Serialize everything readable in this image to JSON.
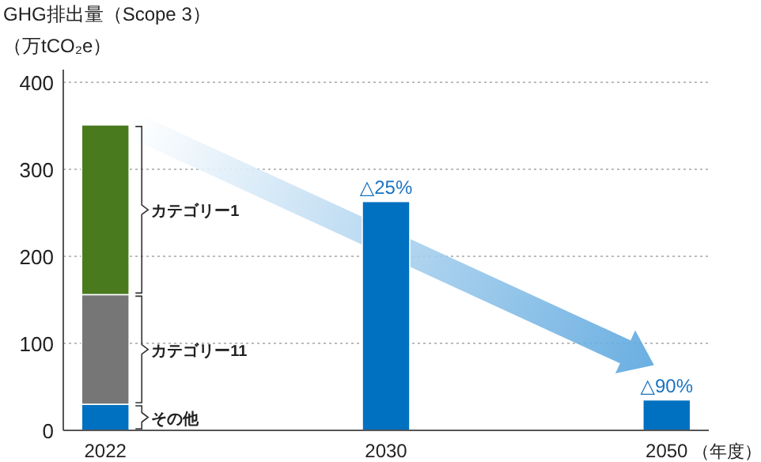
{
  "chart_data": {
    "type": "bar",
    "title": "GHG排出量（Scope 3）",
    "ylabel": "（万tCO₂e）",
    "xlabel": "（年度）",
    "categories": [
      "2022",
      "2030",
      "2050"
    ],
    "stacked": true,
    "series": [
      {
        "name": "その他",
        "color": "#0070c0",
        "values": [
          30,
          263,
          35
        ]
      },
      {
        "name": "カテゴリー11",
        "color": "#767676",
        "values": [
          126,
          null,
          null
        ]
      },
      {
        "name": "カテゴリー1",
        "color": "#4a7a1e",
        "values": [
          195,
          null,
          null
        ]
      }
    ],
    "ylim": [
      0,
      400
    ],
    "yticks": [
      0,
      100,
      200,
      300,
      400
    ],
    "grid": "y",
    "annotations": [
      {
        "text": "△25%",
        "x": "2030",
        "y": 263
      },
      {
        "text": "△90%",
        "x": "2050",
        "y": 35
      }
    ]
  }
}
